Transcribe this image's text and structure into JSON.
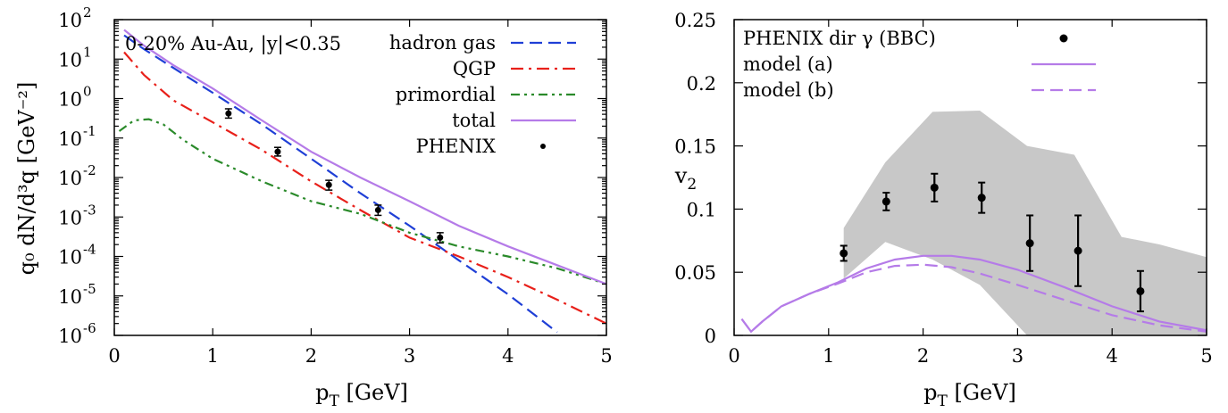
{
  "chart_data": [
    {
      "type": "line",
      "title": "",
      "annotation": "0-20% Au-Au, |y|<0.35",
      "xlabel": "p",
      "xlabel_sub": "T",
      "xlabel_unit": " [GeV]",
      "ylabel": "q₀ dN/d³q [GeV⁻²]",
      "xlim": [
        0,
        5
      ],
      "ylim": [
        1e-06,
        100
      ],
      "yscale": "log",
      "legend_position": "top-right",
      "x_ticks": [
        "0",
        "1",
        "2",
        "3",
        "4",
        "5"
      ],
      "y_ticks": [
        {
          "mant": "10",
          "exp": "-6"
        },
        {
          "mant": "10",
          "exp": "-5"
        },
        {
          "mant": "10",
          "exp": "-4"
        },
        {
          "mant": "10",
          "exp": "-3"
        },
        {
          "mant": "10",
          "exp": "-2"
        },
        {
          "mant": "10",
          "exp": "-1"
        },
        {
          "mant": "10",
          "exp": "0"
        },
        {
          "mant": "10",
          "exp": "1"
        },
        {
          "mant": "10",
          "exp": "2"
        }
      ],
      "series": [
        {
          "name": "hadron gas",
          "color": "#1f3fd6",
          "style": "dashed",
          "x": [
            0.1,
            0.3,
            0.6,
            1.0,
            1.5,
            2.0,
            2.5,
            3.0,
            3.5,
            4.0,
            4.5
          ],
          "y": [
            40,
            18,
            6,
            1.4,
            0.22,
            0.03,
            0.004,
            0.0006,
            8e-05,
            1.1e-05,
            1.2e-06
          ]
        },
        {
          "name": "QGP",
          "color": "#e8201a",
          "style": "dash-dot",
          "x": [
            0.1,
            0.3,
            0.6,
            1.0,
            1.5,
            2.0,
            2.5,
            3.0,
            3.5,
            4.0,
            4.5,
            5.0
          ],
          "y": [
            15,
            4,
            0.9,
            0.25,
            0.05,
            0.008,
            0.0015,
            0.0003,
            0.0001,
            3e-05,
            8e-06,
            2e-06
          ]
        },
        {
          "name": "primordial",
          "color": "#2a8a2a",
          "style": "dash-dot-dot",
          "x": [
            0.05,
            0.2,
            0.35,
            0.5,
            0.7,
            1.0,
            1.5,
            2.0,
            2.5,
            3.0,
            3.5,
            4.0,
            4.5,
            5.0
          ],
          "y": [
            0.15,
            0.28,
            0.3,
            0.22,
            0.09,
            0.03,
            0.008,
            0.0025,
            0.0012,
            0.0004,
            0.00018,
            0.0001,
            5e-05,
            2e-05
          ]
        },
        {
          "name": "total",
          "color": "#b57be8",
          "style": "solid",
          "x": [
            0.1,
            0.3,
            0.6,
            1.0,
            1.5,
            2.0,
            2.5,
            3.0,
            3.5,
            4.0,
            4.5,
            5.0
          ],
          "y": [
            55,
            22,
            7,
            1.8,
            0.28,
            0.045,
            0.01,
            0.0025,
            0.0006,
            0.00018,
            6e-05,
            2e-05
          ]
        },
        {
          "name": "PHENIX",
          "color": "#000000",
          "style": "points",
          "x": [
            1.16,
            1.66,
            2.18,
            2.68,
            3.31
          ],
          "y": [
            0.42,
            0.045,
            0.0065,
            0.0015,
            0.0003
          ],
          "yerr_lo": [
            0.32,
            0.035,
            0.0048,
            0.0011,
            0.00022
          ],
          "yerr_hi": [
            0.55,
            0.058,
            0.0085,
            0.002,
            0.0004
          ]
        }
      ]
    },
    {
      "type": "line",
      "title": "",
      "xlabel": "p",
      "xlabel_sub": "T",
      "xlabel_unit": " [GeV]",
      "ylabel": "v",
      "ylabel_sub": "2",
      "xlim": [
        0,
        5
      ],
      "ylim": [
        0,
        0.25
      ],
      "legend_position": "top-left",
      "x_ticks": [
        "0",
        "1",
        "2",
        "3",
        "4",
        "5"
      ],
      "y_ticks": [
        "0",
        "0.05",
        "0.1",
        "0.15",
        "0.2",
        "0.25"
      ],
      "band": {
        "color": "#c8c8c8",
        "x": [
          1.16,
          1.6,
          2.1,
          2.6,
          3.1,
          3.6,
          4.1,
          4.5,
          5.0
        ],
        "upper": [
          0.085,
          0.137,
          0.177,
          0.178,
          0.15,
          0.143,
          0.078,
          0.072,
          0.062
        ],
        "lower": [
          0.045,
          0.074,
          0.06,
          0.04,
          0.0,
          0.0,
          0.0,
          0.0,
          0.0
        ]
      },
      "series": [
        {
          "name": "PHENIX dir γ (BBC)",
          "color": "#000000",
          "style": "points",
          "x": [
            1.16,
            1.61,
            2.12,
            2.62,
            3.13,
            3.64,
            4.3
          ],
          "y": [
            0.065,
            0.106,
            0.117,
            0.109,
            0.073,
            0.067,
            0.035
          ],
          "yerr": [
            0.006,
            0.007,
            0.011,
            0.012,
            0.022,
            0.028,
            0.016
          ]
        },
        {
          "name": "model (a)",
          "color": "#b57be8",
          "style": "solid",
          "x": [
            0.08,
            0.18,
            0.3,
            0.5,
            0.8,
            1.1,
            1.4,
            1.7,
            2.0,
            2.3,
            2.6,
            3.0,
            3.5,
            4.0,
            4.5,
            5.0
          ],
          "y": [
            0.013,
            0.003,
            0.011,
            0.023,
            0.033,
            0.042,
            0.053,
            0.06,
            0.063,
            0.063,
            0.06,
            0.052,
            0.038,
            0.023,
            0.011,
            0.004
          ]
        },
        {
          "name": "model (b)",
          "color": "#b57be8",
          "style": "dashed",
          "x": [
            0.08,
            0.18,
            0.3,
            0.5,
            0.8,
            1.1,
            1.4,
            1.7,
            2.0,
            2.3,
            2.6,
            3.0,
            3.5,
            4.0,
            4.5,
            5.0
          ],
          "y": [
            0.013,
            0.003,
            0.011,
            0.023,
            0.033,
            0.041,
            0.05,
            0.055,
            0.056,
            0.054,
            0.049,
            0.04,
            0.028,
            0.016,
            0.008,
            0.003
          ]
        }
      ]
    }
  ]
}
